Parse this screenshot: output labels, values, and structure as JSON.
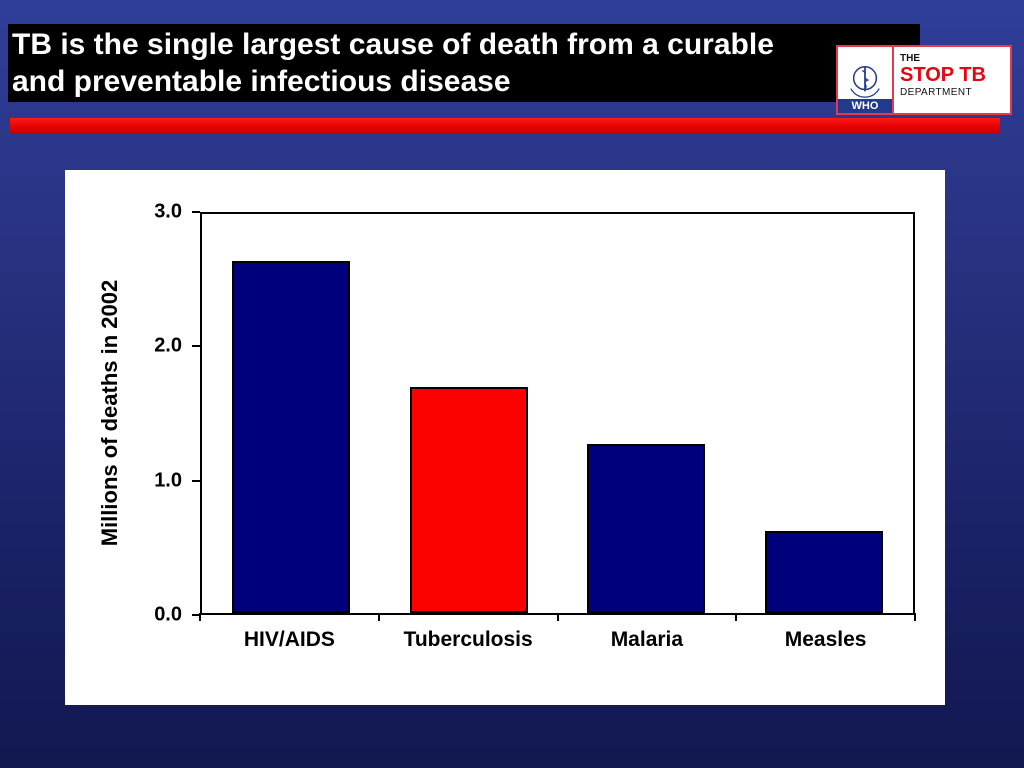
{
  "header": {
    "title_line1": "TB is the single largest cause of death from a curable",
    "title_line2": "and preventable infectious disease"
  },
  "logo": {
    "who": "WHO",
    "the": "THE",
    "stop_tb": "STOP TB",
    "department": "DEPARTMENT"
  },
  "chart_data": {
    "type": "bar",
    "categories": [
      "HIV/AIDS",
      "Tuberculosis",
      "Malaria",
      "Measles"
    ],
    "values": [
      2.65,
      1.7,
      1.27,
      0.62
    ],
    "bar_colors": [
      "#00007d",
      "#fb0000",
      "#00007d",
      "#00007d"
    ],
    "bar_border_color": "#000000",
    "title": "",
    "xlabel": "",
    "ylabel": "Millions of deaths in 2002",
    "ytick_labels": [
      "3.0",
      "2.0",
      "1.0",
      "0.0"
    ],
    "ytick_values": [
      3.0,
      2.0,
      1.0,
      0.0
    ],
    "ylim": [
      0,
      3.0
    ],
    "grid": false,
    "legend": false,
    "plot_background": "#ffffff"
  },
  "colors": {
    "slide_bg_top": "#2f3e99",
    "slide_bg_bottom": "#121850",
    "title_bg": "#000000",
    "title_text": "#ffffff",
    "accent_red": "#e60000",
    "bar_navy": "#00007d",
    "bar_red": "#fb0000",
    "logo_border_red": "#e23b4e",
    "who_navy": "#233a8c"
  }
}
